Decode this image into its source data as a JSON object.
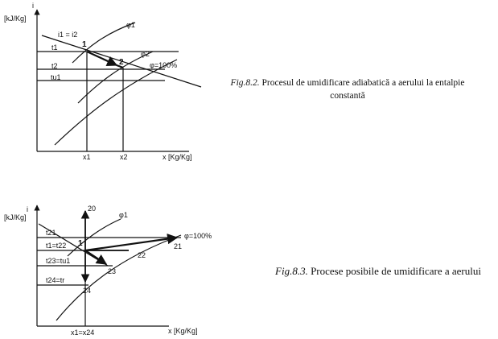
{
  "figure1": {
    "y_axis_label": "i",
    "y_axis_unit": "[kJ/Kg]",
    "x_axis_label": "x [Kg/Kg]",
    "iso_label": "i1 = i2",
    "phi1_label": "φ1",
    "phi2_label": "φ2",
    "phi100_label": "φ=100%",
    "t1_label": "t1",
    "t2_label": "t2",
    "tu1_label": "tu1",
    "point1_label": "1",
    "point2_label": "2",
    "x1_label": "x1",
    "x2_label": "x2",
    "caption_fig": "Fig.8.2.",
    "caption_text": "Procesul de umidificare adiabatică a aerului la entalpie constantă"
  },
  "figure2": {
    "y_axis_label": "i",
    "y_axis_unit": "[kJ/Kg]",
    "x_axis_label": "x [Kg/Kg]",
    "phi1_label": "φ1",
    "phi100_label": "φ=100%",
    "t21_label": "t21",
    "t1_t22_label": "t1=t22",
    "t23_tu1_label": "t23=tu1",
    "t24_tr_label": "t24=tr",
    "point1_label": "1",
    "point20_label": "20",
    "point21_label": "21",
    "point22_label": "22",
    "point23_label": "23",
    "point24_label": "24",
    "x_eq_label": "x1=x24",
    "caption_fig": "Fig.8.3.",
    "caption_text": "Procese posibile de umidificare a aerului"
  }
}
